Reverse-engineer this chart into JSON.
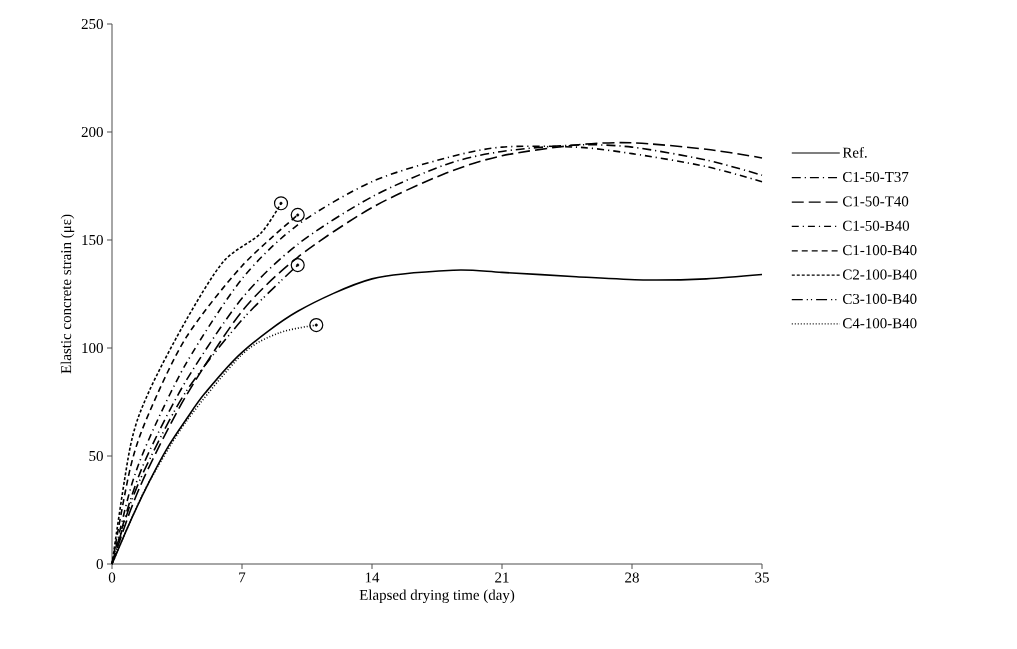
{
  "chart_data": {
    "type": "line",
    "xlabel": "Elapsed drying time (day)",
    "ylabel": "Elastic concrete strain (με)",
    "xlim": [
      0,
      35
    ],
    "xticks": [
      0,
      7,
      14,
      21,
      28,
      35
    ],
    "ylim": [
      0,
      250
    ],
    "yticks": [
      0,
      50,
      100,
      150,
      200,
      250
    ],
    "grid": false,
    "legend": "right",
    "series": [
      {
        "name": "Ref.",
        "color": "#000000",
        "line_style": "solid",
        "x": [
          0,
          1,
          2,
          3,
          4,
          5,
          7,
          10,
          14,
          18.4,
          21,
          25,
          28.6,
          32,
          35
        ],
        "values": [
          0,
          20,
          38,
          54,
          67,
          79,
          98,
          117,
          132,
          136,
          135,
          133,
          131.5,
          132,
          134
        ]
      },
      {
        "name": "C1-50-T37",
        "color": "#000000",
        "line_style": "dashdot",
        "x": [
          0,
          1,
          2,
          4,
          7,
          10,
          14,
          18,
          21,
          25,
          28,
          32,
          35
        ],
        "values": [
          0,
          30,
          52,
          85,
          123,
          148,
          170,
          185,
          191,
          194,
          193,
          187,
          180
        ]
      },
      {
        "name": "C1-50-T40",
        "color": "#000000",
        "line_style": "longdash",
        "x": [
          0,
          1,
          2,
          4,
          7,
          10,
          14,
          18,
          21,
          25,
          28,
          32,
          35
        ],
        "values": [
          0,
          25,
          45,
          78,
          117,
          142,
          165,
          181,
          189,
          194,
          195,
          192,
          188
        ]
      },
      {
        "name": "C1-50-B40",
        "color": "#000000",
        "line_style": "dashdotted",
        "x": [
          0,
          1,
          2,
          4,
          7,
          10,
          14,
          18,
          21,
          25,
          28,
          32,
          35
        ],
        "values": [
          0,
          35,
          58,
          93,
          132,
          157,
          177,
          188,
          193,
          193,
          190,
          184,
          177
        ]
      },
      {
        "name": "C1-100-B40",
        "color": "#000000",
        "line_style": "dashed",
        "x": [
          0,
          1,
          2,
          4,
          7,
          10
        ],
        "values": [
          0,
          45,
          70,
          105,
          138,
          161.6
        ]
      },
      {
        "name": "C2-100-B40",
        "color": "#000000",
        "line_style": "shortdash",
        "x": [
          0,
          1,
          2,
          4,
          6,
          8,
          9.1
        ],
        "values": [
          0,
          55,
          80,
          113,
          140,
          153,
          167
        ]
      },
      {
        "name": "C3-100-B40",
        "color": "#000000",
        "line_style": "dashdotdot",
        "x": [
          0,
          1,
          2,
          4,
          7,
          10
        ],
        "values": [
          0,
          28,
          48,
          80,
          113,
          138.4
        ]
      },
      {
        "name": "C4-100-B40",
        "color": "#000000",
        "line_style": "dotted",
        "x": [
          0,
          1,
          2,
          4,
          7,
          9,
          11
        ],
        "values": [
          0,
          20,
          38,
          66,
          97,
          107,
          110.6
        ]
      },
      {
        "type": "scatter",
        "color": "#000000",
        "marker": "circle",
        "x": [
          9.1,
          10,
          10,
          11
        ],
        "values": [
          167,
          161.6,
          138.4,
          110.6
        ]
      }
    ]
  }
}
